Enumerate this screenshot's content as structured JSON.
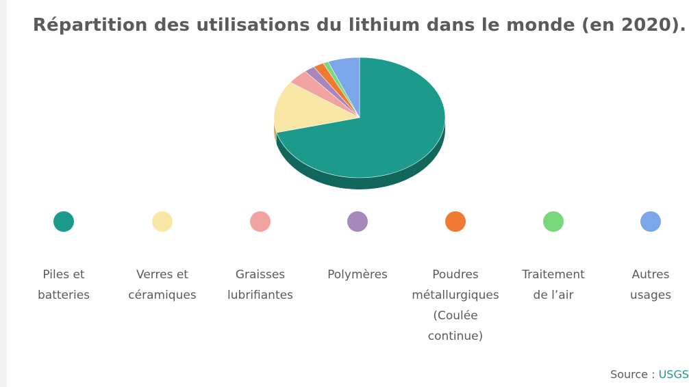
{
  "chart_data": {
    "type": "pie",
    "title": "Répartition des utilisations du lithium dans le monde (en 2020).",
    "slices": [
      {
        "label": "Piles et\nbatteries",
        "value": 71,
        "color": "#1c9a8b",
        "dark": "#12675d"
      },
      {
        "label": "Verres et\ncéramiques",
        "value": 14,
        "color": "#f9e7a5",
        "dark": "#c8b06a"
      },
      {
        "label": "Graisses\nlubrifiantes",
        "value": 4,
        "color": "#f0a3a0",
        "dark": "#b87470"
      },
      {
        "label": "Polymères",
        "value": 2,
        "color": "#a887bd",
        "dark": "#7b5e8c"
      },
      {
        "label": "Poudres\nmétallurgiques\n(Coulée\ncontinue)",
        "value": 2,
        "color": "#f07a32",
        "dark": "#b3551e"
      },
      {
        "label": "Traitement\nde l’air",
        "value": 1,
        "color": "#79d87c",
        "dark": "#4ea24f"
      },
      {
        "label": "Autres\nusages",
        "value": 6,
        "color": "#7ba6ea",
        "dark": "#5479b4"
      }
    ],
    "legend_position": "bottom"
  },
  "source": {
    "prefix": "Source : ",
    "link": "USGS"
  }
}
